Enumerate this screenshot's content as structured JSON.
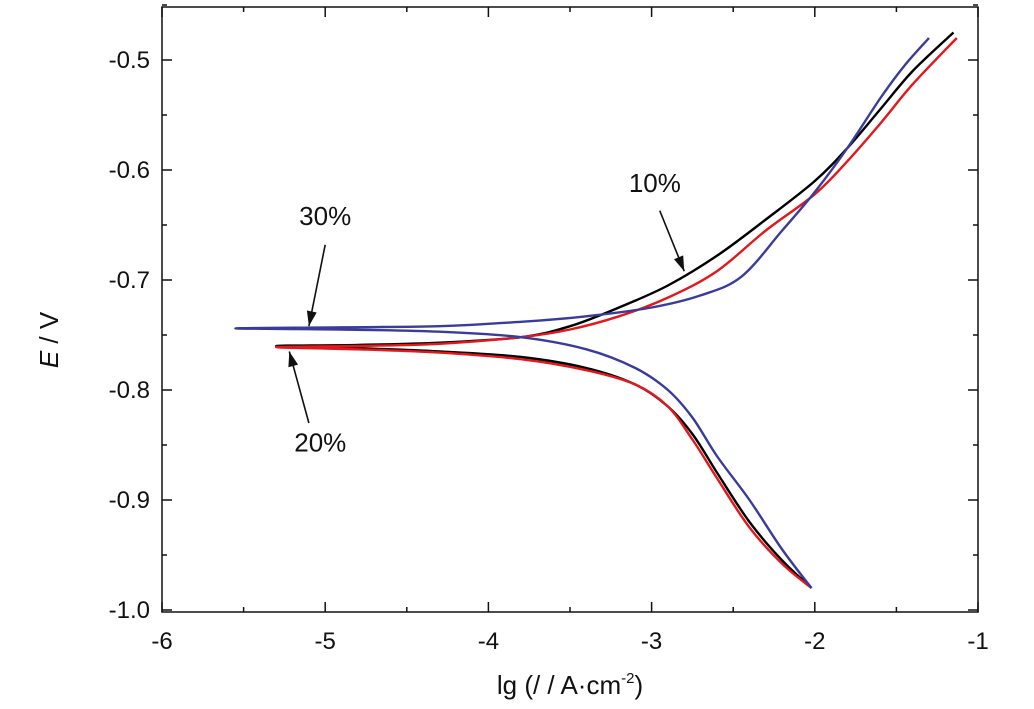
{
  "chart_data": {
    "type": "line",
    "xlabel": "lg (/ / A·cm",
    "xlabel_sup": "-2",
    "xlabel_close": ")",
    "ylabel_var": "E",
    "ylabel_unit": " / V",
    "xlim": [
      -6,
      -1
    ],
    "ylim": [
      -1.0,
      -0.45
    ],
    "x_ticks": [
      -6,
      -5,
      -4,
      -3,
      -2,
      -1
    ],
    "x_tick_labels": [
      "-6",
      "-5",
      "-4",
      "-3",
      "-2",
      "-1"
    ],
    "y_ticks": [
      -1.0,
      -0.9,
      -0.8,
      -0.7,
      -0.6,
      -0.5
    ],
    "y_tick_labels": [
      "-1.0",
      "-0.9",
      "-0.8",
      "-0.7",
      "-0.6",
      "-0.5"
    ],
    "grid": false,
    "legend": "none",
    "series": [
      {
        "color": "#000000",
        "points": [
          [
            -2.02,
            -0.98
          ],
          [
            -2.2,
            -0.955
          ],
          [
            -2.4,
            -0.92
          ],
          [
            -2.6,
            -0.875
          ],
          [
            -2.75,
            -0.84
          ],
          [
            -2.9,
            -0.815
          ],
          [
            -3.1,
            -0.795
          ],
          [
            -3.4,
            -0.78
          ],
          [
            -3.8,
            -0.77
          ],
          [
            -4.3,
            -0.765
          ],
          [
            -4.8,
            -0.762
          ],
          [
            -5.3,
            -0.76
          ],
          [
            -4.8,
            -0.759
          ],
          [
            -4.3,
            -0.757
          ],
          [
            -3.8,
            -0.752
          ],
          [
            -3.5,
            -0.742
          ],
          [
            -3.2,
            -0.725
          ],
          [
            -2.9,
            -0.705
          ],
          [
            -2.6,
            -0.678
          ],
          [
            -2.3,
            -0.645
          ],
          [
            -2.0,
            -0.61
          ],
          [
            -1.8,
            -0.58
          ],
          [
            -1.6,
            -0.545
          ],
          [
            -1.4,
            -0.51
          ],
          [
            -1.15,
            -0.475
          ]
        ]
      },
      {
        "color": "#e3171c",
        "points": [
          [
            -2.02,
            -0.98
          ],
          [
            -2.2,
            -0.958
          ],
          [
            -2.4,
            -0.925
          ],
          [
            -2.6,
            -0.88
          ],
          [
            -2.75,
            -0.845
          ],
          [
            -2.9,
            -0.815
          ],
          [
            -3.1,
            -0.795
          ],
          [
            -3.4,
            -0.782
          ],
          [
            -3.8,
            -0.772
          ],
          [
            -4.3,
            -0.766
          ],
          [
            -4.8,
            -0.763
          ],
          [
            -5.3,
            -0.761
          ],
          [
            -4.8,
            -0.76
          ],
          [
            -4.3,
            -0.758
          ],
          [
            -3.8,
            -0.752
          ],
          [
            -3.5,
            -0.745
          ],
          [
            -3.2,
            -0.733
          ],
          [
            -2.9,
            -0.716
          ],
          [
            -2.6,
            -0.692
          ],
          [
            -2.3,
            -0.655
          ],
          [
            -2.0,
            -0.622
          ],
          [
            -1.8,
            -0.592
          ],
          [
            -1.6,
            -0.558
          ],
          [
            -1.4,
            -0.522
          ],
          [
            -1.13,
            -0.48
          ]
        ]
      },
      {
        "color": "#3a3c9c",
        "points": [
          [
            -2.02,
            -0.98
          ],
          [
            -2.2,
            -0.945
          ],
          [
            -2.4,
            -0.9
          ],
          [
            -2.6,
            -0.86
          ],
          [
            -2.75,
            -0.825
          ],
          [
            -2.9,
            -0.8
          ],
          [
            -3.1,
            -0.78
          ],
          [
            -3.4,
            -0.763
          ],
          [
            -3.8,
            -0.752
          ],
          [
            -4.3,
            -0.747
          ],
          [
            -4.9,
            -0.745
          ],
          [
            -5.55,
            -0.744
          ],
          [
            -4.9,
            -0.743
          ],
          [
            -4.3,
            -0.742
          ],
          [
            -3.8,
            -0.738
          ],
          [
            -3.4,
            -0.733
          ],
          [
            -3.0,
            -0.725
          ],
          [
            -2.7,
            -0.714
          ],
          [
            -2.45,
            -0.697
          ],
          [
            -2.2,
            -0.655
          ],
          [
            -2.0,
            -0.62
          ],
          [
            -1.8,
            -0.58
          ],
          [
            -1.6,
            -0.535
          ],
          [
            -1.45,
            -0.505
          ],
          [
            -1.3,
            -0.48
          ]
        ]
      }
    ],
    "annotations": [
      {
        "text": "10%",
        "pos": [
          -2.98,
          -0.62
        ],
        "arrow_from": [
          -2.95,
          -0.637
        ],
        "arrow_to": [
          -2.8,
          -0.692
        ]
      },
      {
        "text": "30%",
        "pos": [
          -5.0,
          -0.65
        ],
        "arrow_from": [
          -5.0,
          -0.668
        ],
        "arrow_to": [
          -5.1,
          -0.742
        ]
      },
      {
        "text": "20%",
        "pos": [
          -5.03,
          -0.856
        ],
        "arrow_from": [
          -5.1,
          -0.83
        ],
        "arrow_to": [
          -5.22,
          -0.765
        ]
      }
    ]
  }
}
